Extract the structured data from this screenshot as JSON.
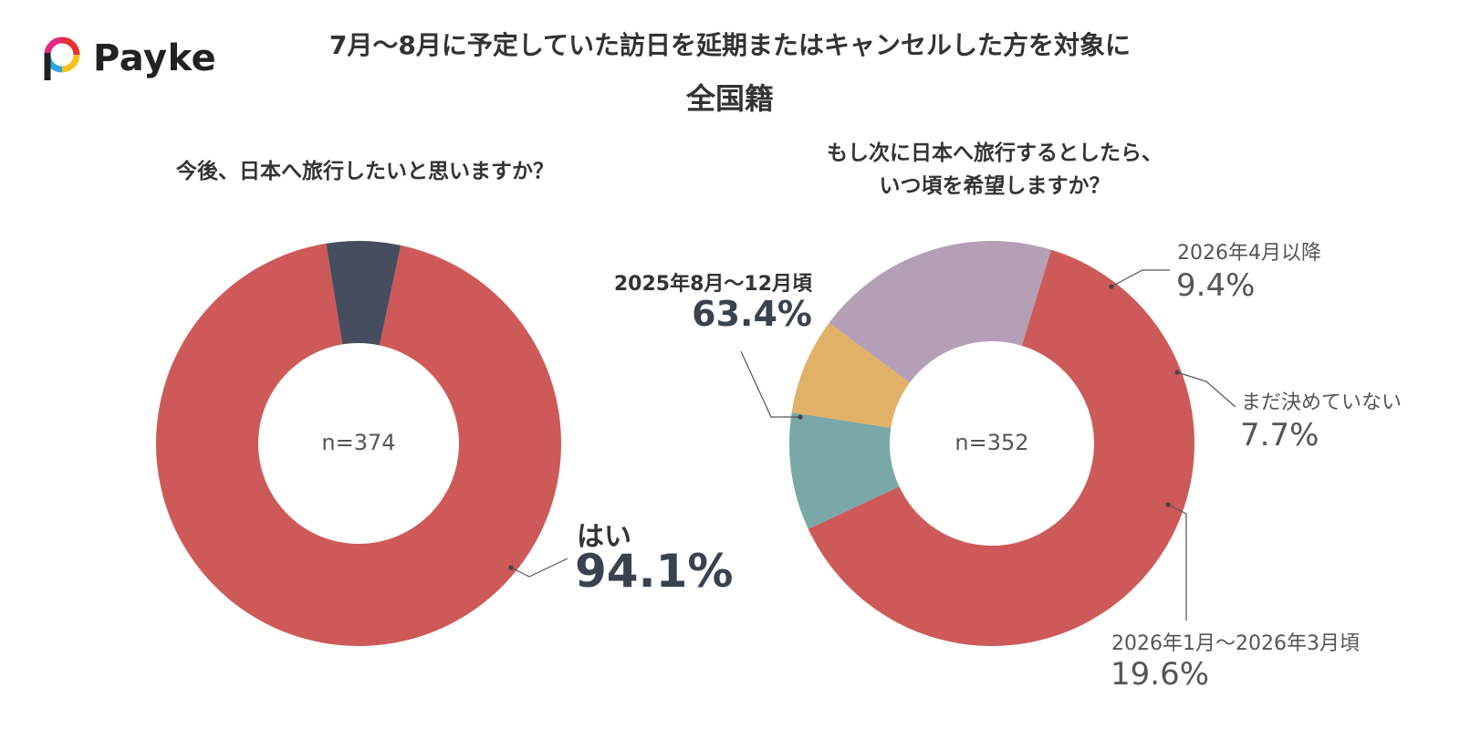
{
  "logo": {
    "text": "Payke"
  },
  "header": {
    "title": "7月〜8月に予定していた訪日を延期またはキャンセルした方を対象に",
    "subtitle": "全国籍"
  },
  "colors": {
    "red": "#cd5a58",
    "navy": "#454d5e",
    "teal": "#7aa8a6",
    "yellow": "#e2b168",
    "lavender": "#b49fb7"
  },
  "chart_data": [
    {
      "type": "pie",
      "donut": true,
      "title": "今後、日本へ旅行したいと思いますか？",
      "center_label": "n=374",
      "slices": [
        {
          "label": "はい",
          "value": 94.1,
          "value_label": "94.1%",
          "color": "#cd5a58"
        },
        {
          "label": "",
          "value": 5.9,
          "value_label": "",
          "color": "#454d5e"
        }
      ]
    },
    {
      "type": "pie",
      "donut": true,
      "title": "もし次に日本へ旅行するとしたら、いつ頃を希望しますか？",
      "title_lines": [
        "もし次に日本へ旅行するとしたら、",
        "いつ頃を希望しますか？"
      ],
      "center_label": "n=352",
      "slices": [
        {
          "label": "2025年8月〜12月頃",
          "value": 63.4,
          "value_label": "63.4%",
          "color": "#cd5a58"
        },
        {
          "label": "2026年4月以降",
          "value": 9.4,
          "value_label": "9.4%",
          "color": "#7aa8a6"
        },
        {
          "label": "まだ決めていない",
          "value": 7.7,
          "value_label": "7.7%",
          "color": "#e2b168"
        },
        {
          "label": "2026年1月〜2026年3月頃",
          "value": 19.6,
          "value_label": "19.6%",
          "color": "#b49fb7"
        }
      ]
    }
  ]
}
